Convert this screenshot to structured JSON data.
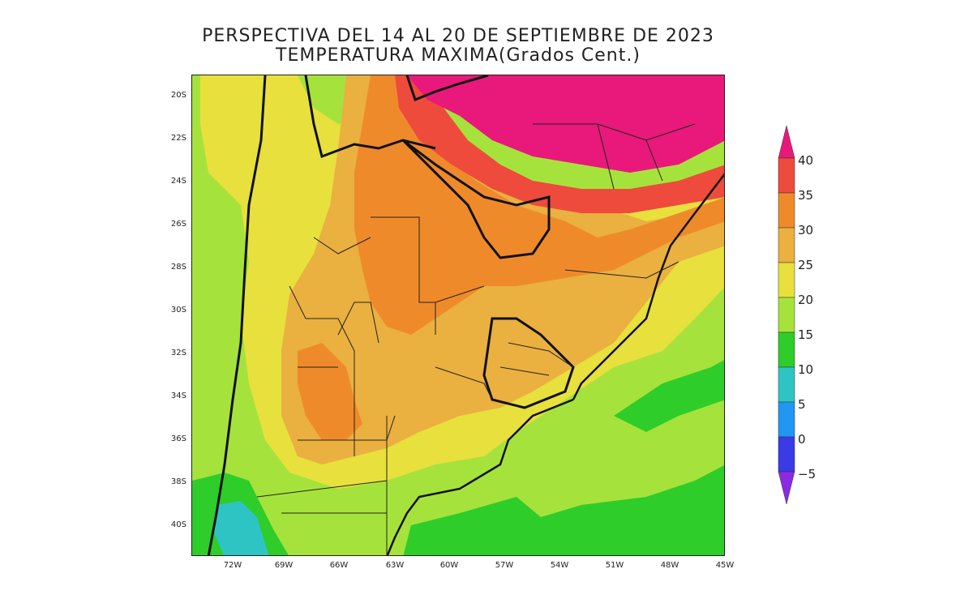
{
  "title": {
    "line1": "PERSPECTIVA DEL 14 AL 20 DE SEPTIEMBRE DE 2023",
    "line2": "TEMPERATURA MAXIMA(Grados Cent.)"
  },
  "axes": {
    "lat_labels": [
      "20S",
      "22S",
      "24S",
      "26S",
      "28S",
      "30S",
      "32S",
      "34S",
      "36S",
      "38S",
      "40S"
    ],
    "lon_labels": [
      "72W",
      "69W",
      "66W",
      "63W",
      "60W",
      "57W",
      "54W",
      "51W",
      "48W",
      "45W"
    ]
  },
  "legend": {
    "labels": [
      "40",
      "35",
      "30",
      "25",
      "20",
      "15",
      "10",
      "5",
      "0",
      "−5"
    ],
    "colors": [
      "#e8197a",
      "#ee4b3c",
      "#ef8a2b",
      "#eab040",
      "#e8e03c",
      "#a6e23c",
      "#2ecd2a",
      "#2fc4c4",
      "#2196f3",
      "#3a3ae6",
      "#8a2be2"
    ]
  },
  "colors": {
    "pink": "#e8197a",
    "red": "#ee4b3c",
    "orange": "#ef8a2b",
    "light_orange": "#eab040",
    "yellow": "#e8e03c",
    "light_green": "#a6e23c",
    "green": "#2ecd2a",
    "cyan": "#2fc4c4"
  }
}
